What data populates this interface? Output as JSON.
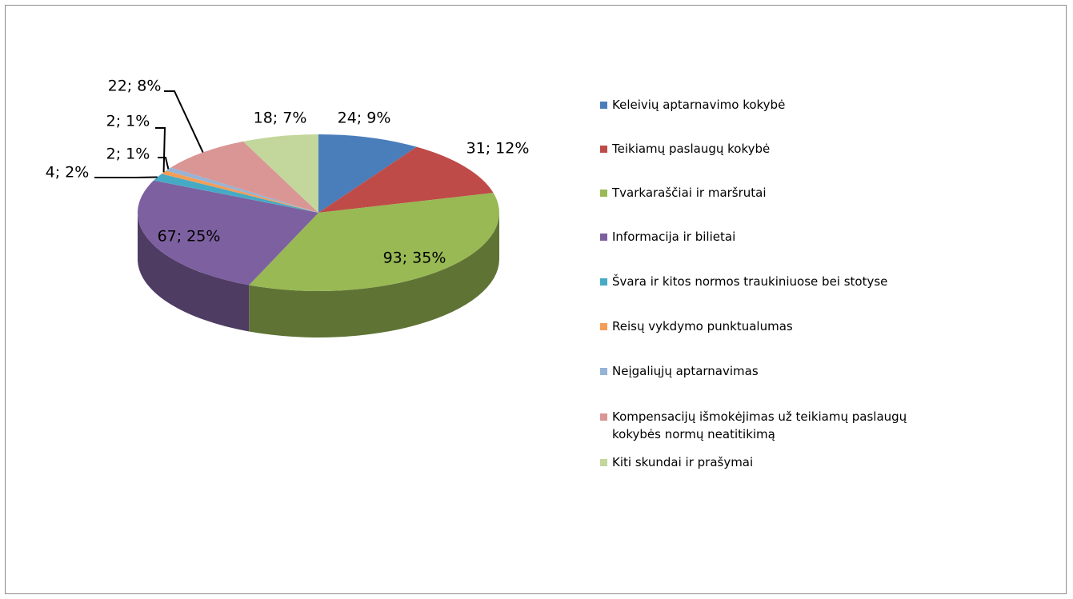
{
  "chart_data": {
    "type": "pie",
    "categories": [
      "Keleivių aptarnavimo kokybė",
      "Teikiamų paslaugų kokybė",
      "Tvarkaraščiai ir maršrutai",
      "Informacija ir bilietai",
      "Švara ir kitos normos traukiniuose bei stotyse",
      "Reisų vykdymo punktualumas",
      "Neįgaliųjų aptarnavimas",
      "Kompensacijų išmokėjimas už teikiamų paslaugų kokybės normų neatitikimą",
      "Kiti skundai ir prašymai"
    ],
    "values": [
      24,
      31,
      93,
      67,
      4,
      2,
      2,
      22,
      18
    ],
    "value_labels": [
      "24; 9%",
      "31; 12%",
      "93; 35%",
      "67; 25%",
      "4; 2%",
      "2; 1%",
      "2; 1%",
      "22; 8%",
      "18; 7%"
    ],
    "colors": [
      "#4a7ebb",
      "#be4b48",
      "#98b954",
      "#7d60a0",
      "#46aac5",
      "#f59d56",
      "#95b3d7",
      "#d99694",
      "#c3d69b"
    ],
    "legend": "right"
  }
}
